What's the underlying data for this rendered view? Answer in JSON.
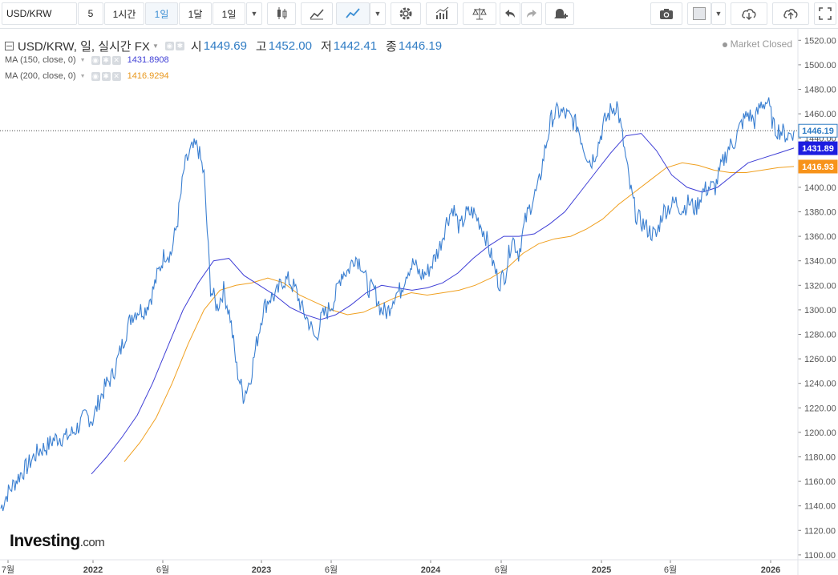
{
  "toolbar": {
    "symbol": "USD/KRW",
    "interval_input": "5",
    "btn_1h": "1시간",
    "btn_1d": "1일",
    "btn_1mo": "1달",
    "btn_range": "1일"
  },
  "legend": {
    "title": "USD/KRW, 일, 실시간 FX",
    "open_label": "시",
    "open_value": "1449.69",
    "high_label": "고",
    "high_value": "1452.00",
    "low_label": "저",
    "low_value": "1442.41",
    "close_label": "종",
    "close_value": "1446.19",
    "ma150_label": "MA (150, close, 0)",
    "ma150_value": "1431.8908",
    "ma200_label": "MA (200, close, 0)",
    "ma200_value": "1416.9294",
    "status": "Market Closed"
  },
  "logo": {
    "main": "Investing",
    "suffix": ".com"
  },
  "colors": {
    "price": "#3a7fd1",
    "ma150": "#3f3fd6",
    "ma200": "#f0a020",
    "accent": "#2f7cc4"
  },
  "chart_data": {
    "type": "line",
    "x_ticks": [
      "7월",
      "2022",
      "6월",
      "2023",
      "6월",
      "2024",
      "6월",
      "2025",
      "6월",
      "2026"
    ],
    "y_ticks": [
      1100,
      1120,
      1140,
      1160,
      1180,
      1200,
      1220,
      1240,
      1260,
      1280,
      1300,
      1320,
      1340,
      1360,
      1380,
      1400,
      1420,
      1440,
      1460,
      1480,
      1500,
      1520
    ],
    "ylim": [
      1096,
      1530
    ],
    "price_badges": {
      "last": "1446.19",
      "ma150": "1431.89",
      "ma200": "1416.93"
    },
    "series": [
      {
        "name": "USD/KRW",
        "values": [
          1138,
          1150,
          1158,
          1166,
          1172,
          1180,
          1186,
          1188,
          1194,
          1196,
          1196,
          1200,
          1206,
          1214,
          1210,
          1226,
          1238,
          1246,
          1262,
          1280,
          1296,
          1300,
          1300,
          1312,
          1330,
          1346,
          1346,
          1374,
          1416,
          1430,
          1434,
          1410,
          1318,
          1302,
          1316,
          1294,
          1252,
          1230,
          1242,
          1272,
          1300,
          1310,
          1312,
          1324,
          1324,
          1316,
          1300,
          1290,
          1276,
          1294,
          1300,
          1310,
          1330,
          1332,
          1344,
          1338,
          1318,
          1316,
          1300,
          1298,
          1312,
          1316,
          1332,
          1338,
          1328,
          1330,
          1340,
          1352,
          1372,
          1384,
          1366,
          1378,
          1380,
          1372,
          1360,
          1340,
          1322,
          1330,
          1360,
          1346,
          1372,
          1388,
          1400,
          1430,
          1456,
          1462,
          1460,
          1456,
          1450,
          1432,
          1420,
          1432,
          1452,
          1462,
          1468,
          1436,
          1400,
          1376,
          1370,
          1364,
          1360,
          1380,
          1384,
          1388,
          1382,
          1388,
          1382,
          1396,
          1400,
          1400,
          1418,
          1432,
          1438,
          1452,
          1460,
          1454,
          1468,
          1470,
          1448,
          1446,
          1442,
          1446
        ]
      },
      {
        "name": "MA (150, close, 0)",
        "values": [
          1166,
          1180,
          1196,
          1214,
          1240,
          1270,
          1300,
          1322,
          1340,
          1342,
          1328,
          1320,
          1312,
          1302,
          1296,
          1292,
          1296,
          1304,
          1314,
          1320,
          1318,
          1316,
          1318,
          1322,
          1330,
          1342,
          1352,
          1360,
          1360,
          1362,
          1370,
          1380,
          1396,
          1412,
          1428,
          1442,
          1444,
          1430,
          1410,
          1400,
          1396,
          1400,
          1410,
          1420,
          1424,
          1428,
          1432
        ]
      },
      {
        "name": "MA (200, close, 0)",
        "values": [
          1176,
          1192,
          1212,
          1240,
          1272,
          1300,
          1316,
          1320,
          1322,
          1326,
          1322,
          1312,
          1306,
          1300,
          1296,
          1298,
          1304,
          1310,
          1314,
          1312,
          1314,
          1316,
          1320,
          1326,
          1334,
          1346,
          1354,
          1358,
          1360,
          1366,
          1374,
          1386,
          1396,
          1406,
          1416,
          1420,
          1418,
          1414,
          1412,
          1412,
          1414,
          1416,
          1417
        ]
      }
    ]
  }
}
